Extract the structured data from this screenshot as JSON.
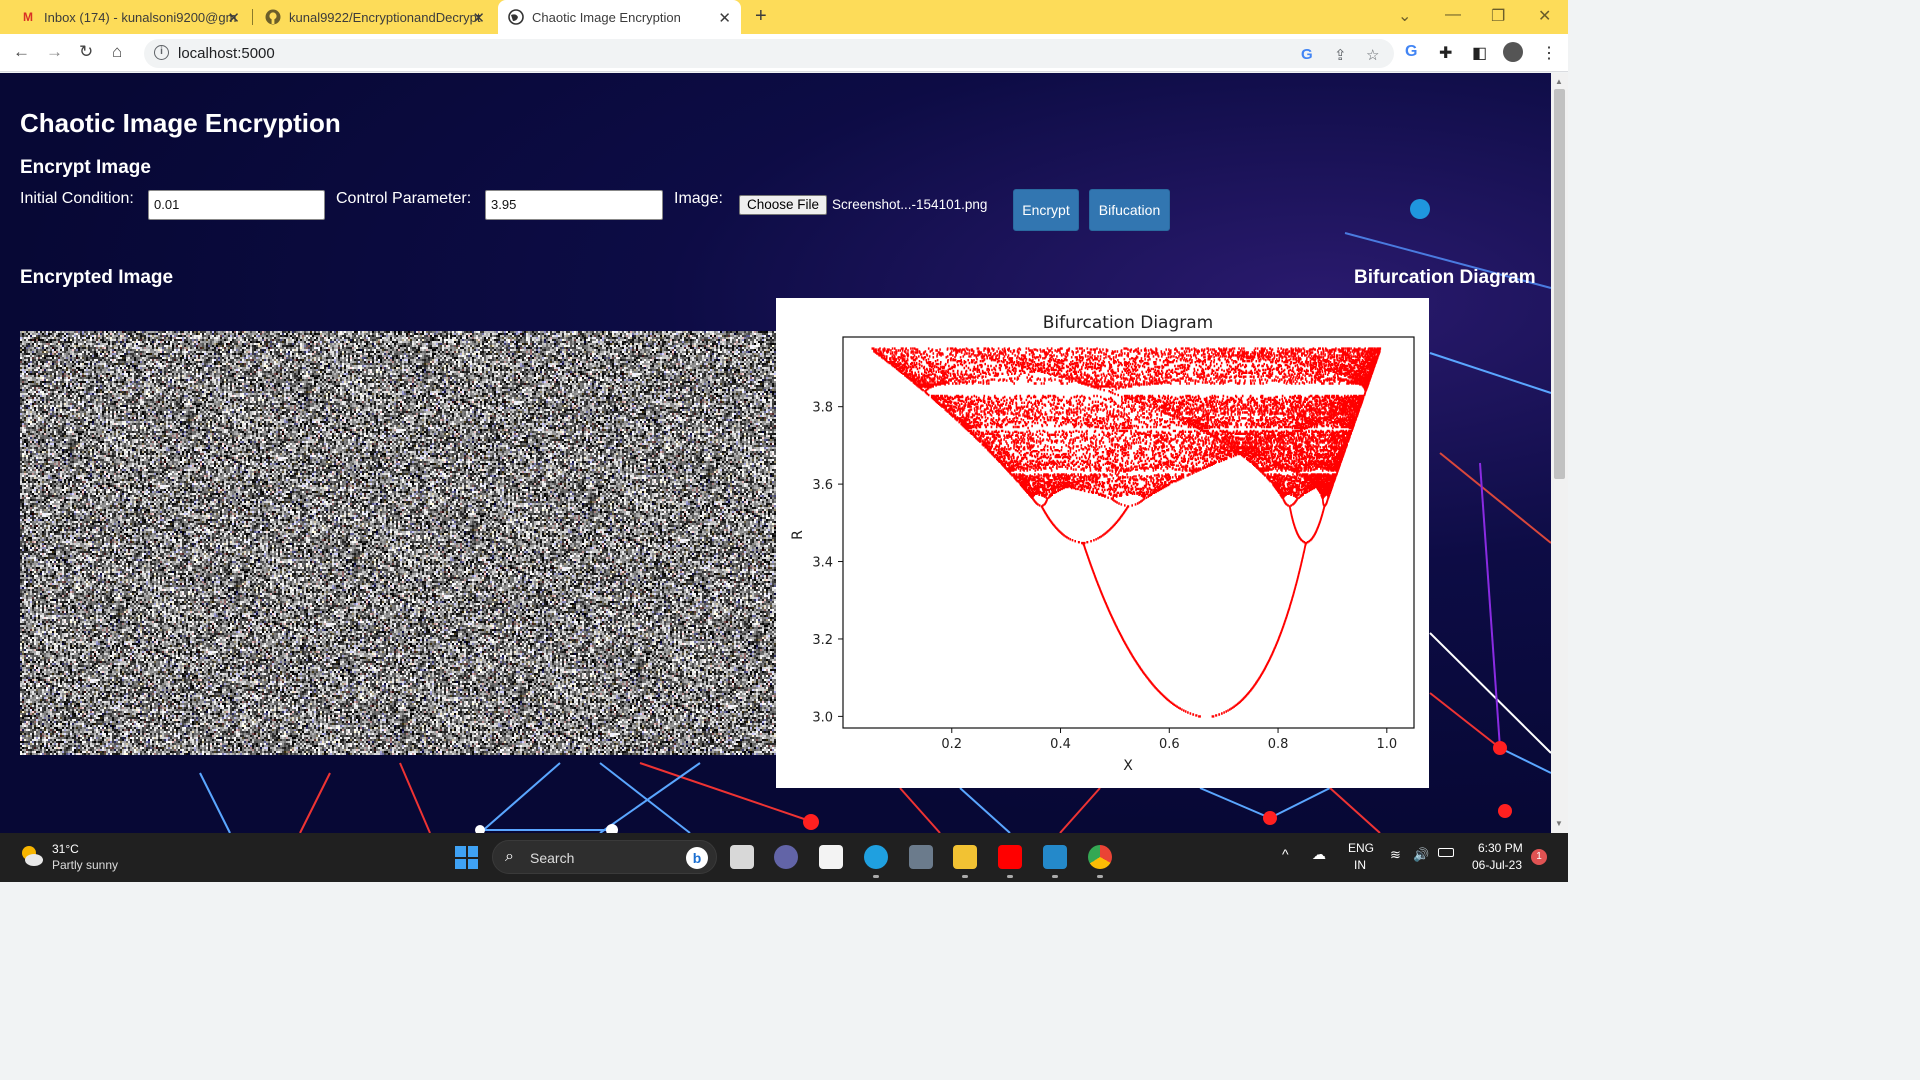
{
  "browser": {
    "tabs": [
      {
        "title": "Inbox (174) - kunalsoni9200@gm",
        "icon": "gmail-icon"
      },
      {
        "title": "kunal9922/EncryptionandDecrypt",
        "icon": "github-icon"
      },
      {
        "title": "Chaotic Image Encryption",
        "icon": "globe-icon"
      }
    ],
    "url": "localhost:5000"
  },
  "page": {
    "title": "Chaotic Image Encryption",
    "encrypt_heading": "Encrypt Image",
    "initial_condition_label": "Initial Condition:",
    "initial_condition_value": "0.01",
    "control_parameter_label": "Control Parameter:",
    "control_parameter_value": "3.95",
    "image_label": "Image:",
    "choose_file_label": "Choose File",
    "file_name": "Screenshot...-154101.png",
    "encrypt_button": "Encrypt",
    "bifurcation_button": "Bifucation",
    "encrypted_heading": "Encrypted Image",
    "bifurcation_heading": "Bifurcation Diagram"
  },
  "chart_data": {
    "type": "scatter",
    "title": "Bifurcation Diagram",
    "xlabel": "X",
    "ylabel": "R",
    "xlim": [
      0.0,
      1.05
    ],
    "ylim": [
      2.97,
      3.98
    ],
    "xticks": [
      "0.2",
      "0.4",
      "0.6",
      "0.8",
      "1.0"
    ],
    "yticks": [
      "3.0",
      "3.2",
      "3.4",
      "3.6",
      "3.8"
    ],
    "color": "#ff0000",
    "r_range": [
      3.0,
      3.95
    ],
    "grid": false
  },
  "taskbar": {
    "temperature": "31°C",
    "weather": "Partly sunny",
    "search_placeholder": "Search",
    "language_1": "ENG",
    "language_2": "IN",
    "time": "6:30 PM",
    "date": "06-Jul-23",
    "notification_count": "1"
  }
}
